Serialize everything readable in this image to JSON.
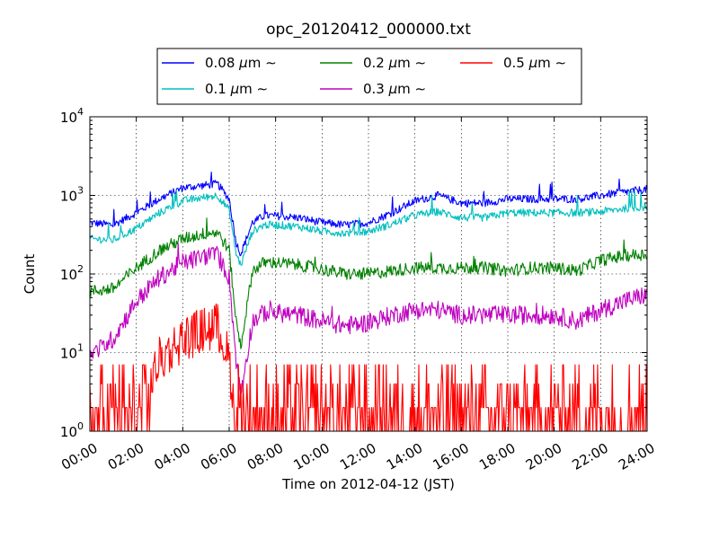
{
  "chart_data": {
    "type": "line",
    "title": "opc_20120412_000000.txt",
    "xlabel": "Time on 2012-04-12 (JST)",
    "ylabel": "Count",
    "x_ticks": [
      "00:00",
      "02:00",
      "04:00",
      "06:00",
      "08:00",
      "10:00",
      "12:00",
      "14:00",
      "16:00",
      "18:00",
      "20:00",
      "22:00",
      "24:00"
    ],
    "xlim_hours": [
      0,
      24
    ],
    "y_scale": "log",
    "ylim": [
      1,
      10000
    ],
    "y_ticks": [
      {
        "value": 1,
        "base": "10",
        "exp": "0"
      },
      {
        "value": 10,
        "base": "10",
        "exp": "1"
      },
      {
        "value": 100,
        "base": "10",
        "exp": "2"
      },
      {
        "value": 1000,
        "base": "10",
        "exp": "3"
      },
      {
        "value": 10000,
        "base": "10",
        "exp": "4"
      }
    ],
    "grid": true,
    "legend_position": "top-center",
    "x_hours": [
      0,
      1,
      2,
      3,
      4,
      5,
      5.5,
      6,
      6.3,
      6.5,
      7,
      7.5,
      8,
      9,
      10,
      11,
      12,
      13,
      14,
      15,
      16,
      17,
      18,
      19,
      20,
      21,
      22,
      23,
      24
    ],
    "series": [
      {
        "name": "0.08",
        "unit": "μm",
        "suffix": "∼",
        "color": "#0000ff",
        "values": [
          450,
          420,
          600,
          900,
          1250,
          1350,
          1400,
          900,
          250,
          180,
          450,
          550,
          550,
          520,
          450,
          420,
          450,
          600,
          850,
          1000,
          800,
          800,
          900,
          900,
          900,
          900,
          1000,
          1100,
          1200
        ]
      },
      {
        "name": "0.1",
        "unit": "μm",
        "suffix": "∼",
        "color": "#00bfbf",
        "values": [
          280,
          270,
          380,
          600,
          850,
          950,
          1000,
          650,
          180,
          130,
          350,
          420,
          420,
          400,
          350,
          330,
          350,
          430,
          560,
          620,
          520,
          520,
          600,
          600,
          600,
          600,
          620,
          680,
          720
        ]
      },
      {
        "name": "0.2",
        "unit": "μm",
        "suffix": "∼",
        "color": "#008000",
        "values": [
          60,
          65,
          120,
          200,
          280,
          330,
          340,
          200,
          25,
          12,
          110,
          140,
          140,
          130,
          115,
          100,
          100,
          110,
          120,
          120,
          120,
          120,
          110,
          120,
          120,
          110,
          150,
          170,
          180
        ]
      },
      {
        "name": "0.3",
        "unit": "μm",
        "suffix": "∼",
        "color": "#bf00bf",
        "values": [
          9,
          15,
          45,
          90,
          140,
          170,
          175,
          90,
          8,
          3,
          25,
          32,
          32,
          30,
          25,
          22,
          24,
          30,
          35,
          35,
          30,
          30,
          30,
          30,
          30,
          25,
          35,
          45,
          55
        ]
      },
      {
        "name": "0.5",
        "unit": "μm",
        "suffix": "∼",
        "color": "#ff0000",
        "values": [
          1,
          1,
          1.5,
          8,
          15,
          20,
          22,
          8,
          1,
          1,
          1.5,
          2,
          2,
          2,
          2,
          2,
          2,
          2,
          2.5,
          2.5,
          2,
          2,
          2.5,
          2.5,
          2.5,
          2.5,
          3,
          3,
          3
        ]
      }
    ]
  }
}
